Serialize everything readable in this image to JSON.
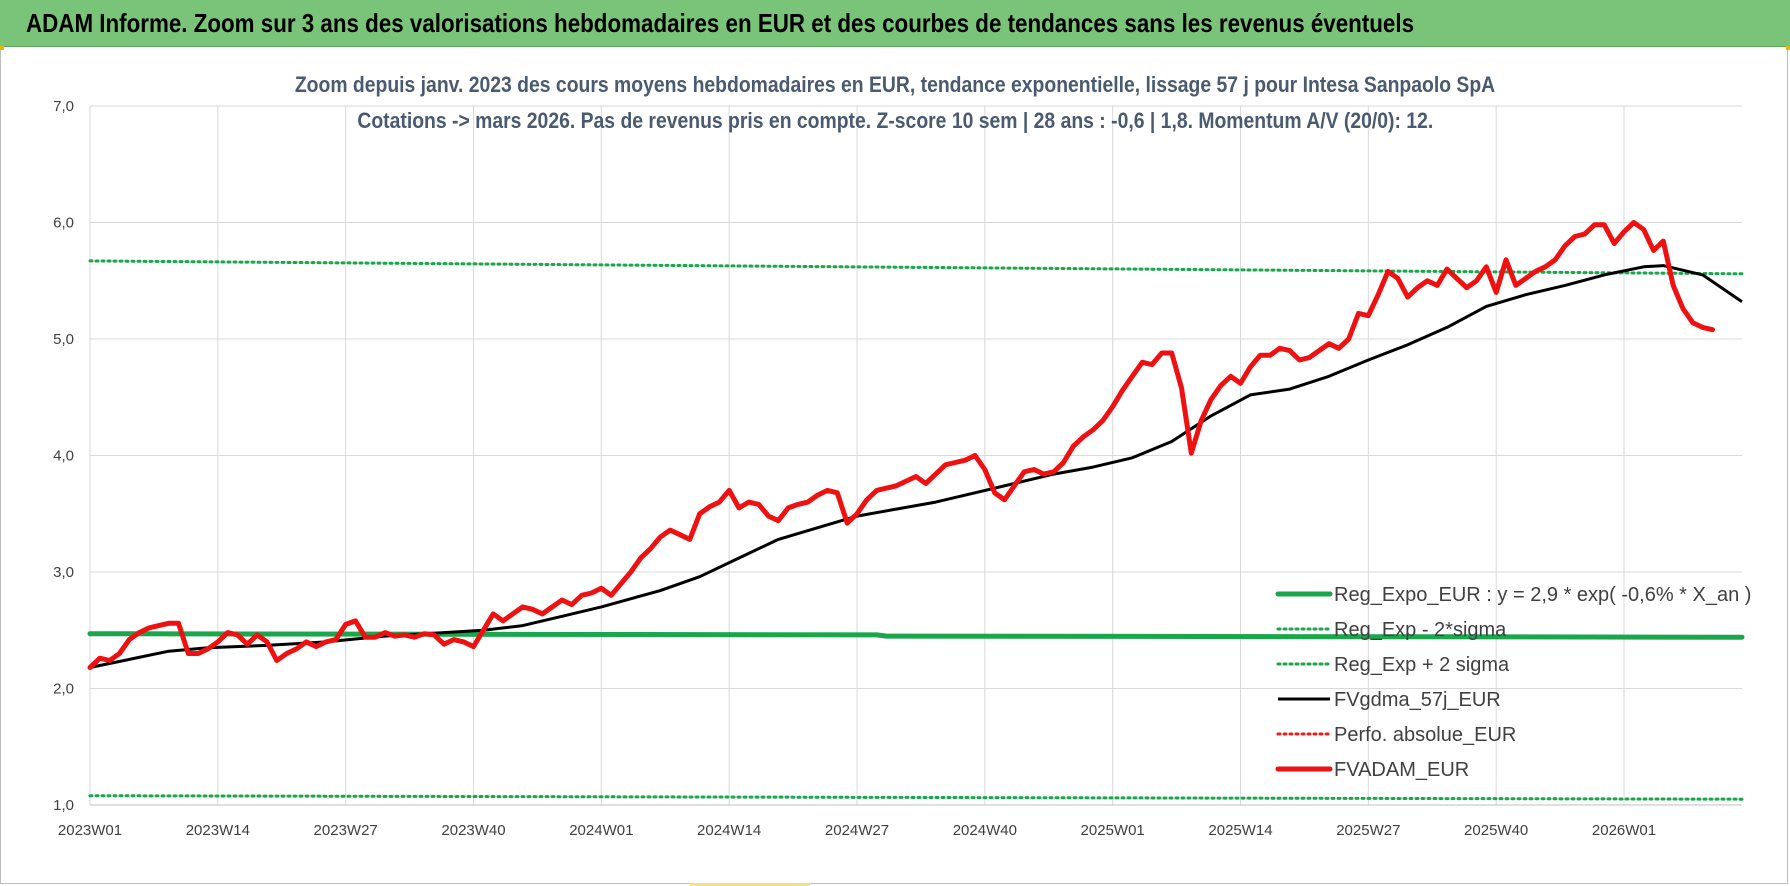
{
  "banner": {
    "title": "ADAM Informe. Zoom sur 3 ans des valorisations hebdomadaires en EUR et des courbes de tendances sans les revenus éventuels"
  },
  "chart_data": {
    "type": "line",
    "title": "Zoom depuis janv. 2023 des cours moyens hebdomadaires en EUR, tendance exponentielle, lissage 57 j pour Intesa Sanpaolo SpA",
    "subtitle": "Cotations -> mars 2026. Pas de revenus pris en compte. Z-score 10 sem | 28 ans : -0,6 | 1,8. Momentum A/V (20/0): 12.",
    "xlabel": "",
    "ylabel": "",
    "ylim": [
      1.0,
      7.0
    ],
    "yticks": [
      "1,0",
      "2,0",
      "3,0",
      "4,0",
      "5,0",
      "6,0",
      "7,0"
    ],
    "x_tick_labels": [
      "2023W01",
      "2023W14",
      "2023W27",
      "2023W40",
      "2024W01",
      "2024W14",
      "2024W27",
      "2024W40",
      "2025W01",
      "2025W14",
      "2025W27",
      "2025W40",
      "2026W01"
    ],
    "x_tick_index": [
      0,
      13,
      26,
      39,
      52,
      65,
      78,
      91,
      104,
      117,
      130,
      143,
      156
    ],
    "n_weeks": 169,
    "grid": true,
    "legend_position": "bottom-right",
    "series": [
      {
        "name": "Reg_Expo_EUR : y = 2,9 * exp( -0,6% *  X_an )",
        "color": "#1aa64a",
        "style": "solid-thick",
        "points": [
          [
            0,
            2.47
          ],
          [
            80,
            2.46
          ],
          [
            81,
            2.45
          ],
          [
            168,
            2.44
          ]
        ]
      },
      {
        "name": "Reg_Exp - 2*sigma",
        "color": "#1aa64a",
        "style": "dotted",
        "points": [
          [
            0,
            1.08
          ],
          [
            168,
            1.05
          ]
        ]
      },
      {
        "name": "Reg_Exp + 2 sigma",
        "color": "#1aa64a",
        "style": "dotted",
        "points": [
          [
            0,
            5.67
          ],
          [
            168,
            5.56
          ]
        ]
      },
      {
        "name": "FVgdma_57j_EUR",
        "color": "#000000",
        "style": "solid",
        "points": [
          [
            0,
            2.18
          ],
          [
            4,
            2.25
          ],
          [
            8,
            2.32
          ],
          [
            12,
            2.35
          ],
          [
            18,
            2.37
          ],
          [
            24,
            2.4
          ],
          [
            30,
            2.45
          ],
          [
            36,
            2.48
          ],
          [
            40,
            2.5
          ],
          [
            44,
            2.54
          ],
          [
            48,
            2.62
          ],
          [
            52,
            2.7
          ],
          [
            58,
            2.84
          ],
          [
            62,
            2.96
          ],
          [
            66,
            3.12
          ],
          [
            70,
            3.28
          ],
          [
            74,
            3.38
          ],
          [
            78,
            3.48
          ],
          [
            82,
            3.54
          ],
          [
            86,
            3.6
          ],
          [
            90,
            3.68
          ],
          [
            94,
            3.76
          ],
          [
            98,
            3.84
          ],
          [
            102,
            3.9
          ],
          [
            106,
            3.98
          ],
          [
            110,
            4.12
          ],
          [
            114,
            4.34
          ],
          [
            118,
            4.52
          ],
          [
            122,
            4.57
          ],
          [
            126,
            4.68
          ],
          [
            130,
            4.82
          ],
          [
            134,
            4.95
          ],
          [
            138,
            5.1
          ],
          [
            142,
            5.28
          ],
          [
            146,
            5.38
          ],
          [
            150,
            5.46
          ],
          [
            154,
            5.55
          ],
          [
            158,
            5.62
          ],
          [
            160,
            5.63
          ],
          [
            164,
            5.55
          ],
          [
            168,
            5.32
          ]
        ]
      },
      {
        "name": "Perfo. absolue_EUR",
        "color": "#e02020",
        "style": "dotted",
        "points": []
      },
      {
        "name": "FVADAM_EUR",
        "color": "#ee1111",
        "style": "solid-thick",
        "points": [
          [
            0,
            2.18
          ],
          [
            1,
            2.26
          ],
          [
            2,
            2.24
          ],
          [
            3,
            2.3
          ],
          [
            4,
            2.42
          ],
          [
            5,
            2.48
          ],
          [
            6,
            2.52
          ],
          [
            7,
            2.54
          ],
          [
            8,
            2.56
          ],
          [
            9,
            2.56
          ],
          [
            10,
            2.3
          ],
          [
            11,
            2.3
          ],
          [
            12,
            2.34
          ],
          [
            13,
            2.4
          ],
          [
            14,
            2.48
          ],
          [
            15,
            2.46
          ],
          [
            16,
            2.38
          ],
          [
            17,
            2.46
          ],
          [
            18,
            2.4
          ],
          [
            19,
            2.24
          ],
          [
            20,
            2.3
          ],
          [
            21,
            2.34
          ],
          [
            22,
            2.4
          ],
          [
            23,
            2.36
          ],
          [
            24,
            2.4
          ],
          [
            25,
            2.42
          ],
          [
            26,
            2.55
          ],
          [
            27,
            2.58
          ],
          [
            28,
            2.44
          ],
          [
            29,
            2.44
          ],
          [
            30,
            2.48
          ],
          [
            31,
            2.45
          ],
          [
            32,
            2.46
          ],
          [
            33,
            2.44
          ],
          [
            34,
            2.47
          ],
          [
            35,
            2.46
          ],
          [
            36,
            2.38
          ],
          [
            37,
            2.42
          ],
          [
            38,
            2.4
          ],
          [
            39,
            2.36
          ],
          [
            40,
            2.5
          ],
          [
            41,
            2.64
          ],
          [
            42,
            2.58
          ],
          [
            43,
            2.64
          ],
          [
            44,
            2.7
          ],
          [
            45,
            2.68
          ],
          [
            46,
            2.64
          ],
          [
            47,
            2.7
          ],
          [
            48,
            2.76
          ],
          [
            49,
            2.72
          ],
          [
            50,
            2.8
          ],
          [
            51,
            2.82
          ],
          [
            52,
            2.86
          ],
          [
            53,
            2.8
          ],
          [
            54,
            2.9
          ],
          [
            55,
            3.0
          ],
          [
            56,
            3.12
          ],
          [
            57,
            3.2
          ],
          [
            58,
            3.3
          ],
          [
            59,
            3.36
          ],
          [
            60,
            3.32
          ],
          [
            61,
            3.28
          ],
          [
            62,
            3.5
          ],
          [
            63,
            3.56
          ],
          [
            64,
            3.6
          ],
          [
            65,
            3.7
          ],
          [
            66,
            3.55
          ],
          [
            67,
            3.6
          ],
          [
            68,
            3.58
          ],
          [
            69,
            3.48
          ],
          [
            70,
            3.44
          ],
          [
            71,
            3.55
          ],
          [
            72,
            3.58
          ],
          [
            73,
            3.6
          ],
          [
            74,
            3.66
          ],
          [
            75,
            3.7
          ],
          [
            76,
            3.68
          ],
          [
            77,
            3.42
          ],
          [
            78,
            3.5
          ],
          [
            79,
            3.62
          ],
          [
            80,
            3.7
          ],
          [
            81,
            3.72
          ],
          [
            82,
            3.74
          ],
          [
            83,
            3.78
          ],
          [
            84,
            3.82
          ],
          [
            85,
            3.76
          ],
          [
            86,
            3.84
          ],
          [
            87,
            3.92
          ],
          [
            88,
            3.94
          ],
          [
            89,
            3.96
          ],
          [
            90,
            4.0
          ],
          [
            91,
            3.88
          ],
          [
            92,
            3.68
          ],
          [
            93,
            3.62
          ],
          [
            94,
            3.74
          ],
          [
            95,
            3.86
          ],
          [
            96,
            3.88
          ],
          [
            97,
            3.84
          ],
          [
            98,
            3.86
          ],
          [
            99,
            3.94
          ],
          [
            100,
            4.08
          ],
          [
            101,
            4.16
          ],
          [
            102,
            4.22
          ],
          [
            103,
            4.3
          ],
          [
            104,
            4.42
          ],
          [
            105,
            4.56
          ],
          [
            106,
            4.68
          ],
          [
            107,
            4.8
          ],
          [
            108,
            4.78
          ],
          [
            109,
            4.88
          ],
          [
            110,
            4.88
          ],
          [
            111,
            4.58
          ],
          [
            112,
            4.02
          ],
          [
            113,
            4.3
          ],
          [
            114,
            4.48
          ],
          [
            115,
            4.6
          ],
          [
            116,
            4.68
          ],
          [
            117,
            4.62
          ],
          [
            118,
            4.76
          ],
          [
            119,
            4.86
          ],
          [
            120,
            4.86
          ],
          [
            121,
            4.92
          ],
          [
            122,
            4.9
          ],
          [
            123,
            4.82
          ],
          [
            124,
            4.84
          ],
          [
            125,
            4.9
          ],
          [
            126,
            4.96
          ],
          [
            127,
            4.92
          ],
          [
            128,
            5.0
          ],
          [
            129,
            5.22
          ],
          [
            130,
            5.2
          ],
          [
            131,
            5.38
          ],
          [
            132,
            5.58
          ],
          [
            133,
            5.52
          ],
          [
            134,
            5.36
          ],
          [
            135,
            5.44
          ],
          [
            136,
            5.5
          ],
          [
            137,
            5.46
          ],
          [
            138,
            5.6
          ],
          [
            139,
            5.52
          ],
          [
            140,
            5.44
          ],
          [
            141,
            5.5
          ],
          [
            142,
            5.62
          ],
          [
            143,
            5.4
          ],
          [
            144,
            5.68
          ],
          [
            145,
            5.46
          ],
          [
            146,
            5.52
          ],
          [
            147,
            5.58
          ],
          [
            148,
            5.62
          ],
          [
            149,
            5.68
          ],
          [
            150,
            5.8
          ],
          [
            151,
            5.88
          ],
          [
            152,
            5.9
          ],
          [
            153,
            5.98
          ],
          [
            154,
            5.98
          ],
          [
            155,
            5.82
          ],
          [
            156,
            5.92
          ],
          [
            157,
            6.0
          ],
          [
            158,
            5.94
          ],
          [
            159,
            5.76
          ],
          [
            160,
            5.84
          ],
          [
            161,
            5.46
          ],
          [
            162,
            5.26
          ],
          [
            163,
            5.14
          ],
          [
            164,
            5.1
          ],
          [
            165,
            5.08
          ]
        ]
      }
    ]
  }
}
